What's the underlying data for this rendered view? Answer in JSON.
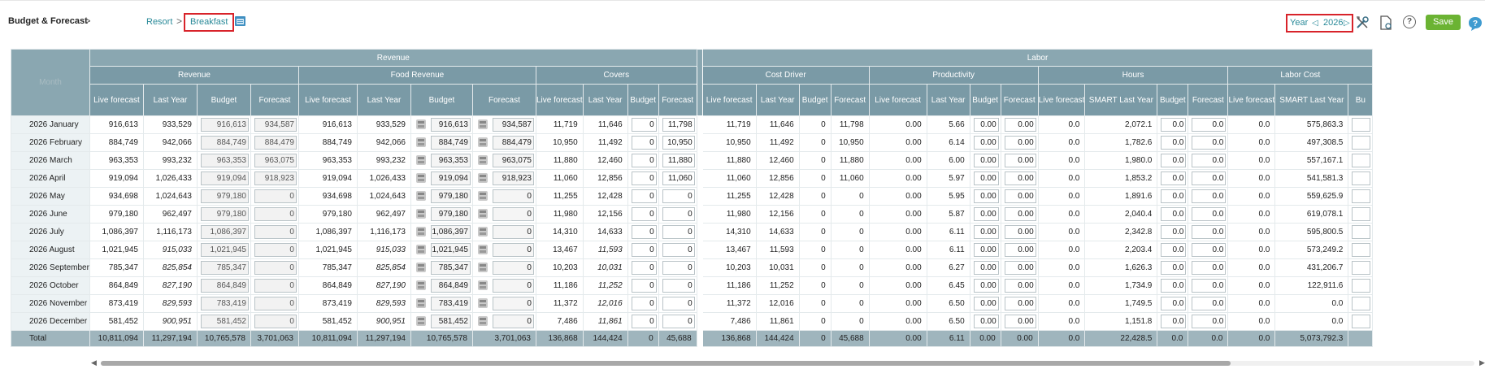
{
  "header": {
    "title": "Budget & Forecast",
    "title_chevron": ">",
    "breadcrumb": {
      "resort": "Resort",
      "separator": ">",
      "current": "Breakfast"
    },
    "year_label": "Year",
    "year_value": "2026",
    "prev_glyph": "◁",
    "next_glyph": "▷",
    "help_glyph": "?",
    "save_label": "Save",
    "icons": [
      "calendar-icon",
      "tools-icon",
      "report-icon",
      "help-icon",
      "chat-icon"
    ],
    "colors": {
      "highlight": "#d8232a",
      "link": "#2a8a99",
      "save": "#6bb333",
      "header": "#7a9aa6"
    }
  },
  "grid": {
    "month_header": "Month",
    "groups": [
      {
        "label": "Revenue"
      },
      {
        "label": "Labor"
      }
    ],
    "subgroups": [
      "Revenue",
      "Food Revenue",
      "Covers",
      "Cost Driver",
      "Productivity",
      "Hours",
      "Labor Cost"
    ],
    "columns": [
      "Live forecast",
      "Last Year",
      "Budget",
      "Forecast",
      "Live forecast",
      "Last Year",
      "Budget",
      "Forecast",
      "Live forecast",
      "Last Year",
      "Budget",
      "Forecast",
      "Live forecast",
      "Last Year",
      "Budget",
      "Forecast",
      "Live forecast",
      "Last Year",
      "Budget",
      "Forecast",
      "Live forecast",
      "SMART Last Year",
      "Budget",
      "Forecast",
      "Live forecast",
      "SMART Last Year",
      "Bu"
    ],
    "rows": [
      {
        "month": "2026 January",
        "c": [
          "916,613",
          "933,529",
          "916,613",
          "934,587",
          "916,613",
          "933,529",
          "916,613",
          "934,587",
          "11,719",
          "11,646",
          "0",
          "11,798",
          "11,719",
          "11,646",
          "0",
          "11,798",
          "0.00",
          "5.66",
          "0.00",
          "0.00",
          "0.0",
          "2,072.1",
          "0.0",
          "0.0",
          "0.0",
          "575,863.3",
          ""
        ]
      },
      {
        "month": "2026 February",
        "c": [
          "884,749",
          "942,066",
          "884,749",
          "884,479",
          "884,749",
          "942,066",
          "884,749",
          "884,479",
          "10,950",
          "11,492",
          "0",
          "10,950",
          "10,950",
          "11,492",
          "0",
          "10,950",
          "0.00",
          "6.14",
          "0.00",
          "0.00",
          "0.0",
          "1,782.6",
          "0.0",
          "0.0",
          "0.0",
          "497,308.5",
          ""
        ]
      },
      {
        "month": "2026 March",
        "c": [
          "963,353",
          "993,232",
          "963,353",
          "963,075",
          "963,353",
          "993,232",
          "963,353",
          "963,075",
          "11,880",
          "12,460",
          "0",
          "11,880",
          "11,880",
          "12,460",
          "0",
          "11,880",
          "0.00",
          "6.00",
          "0.00",
          "0.00",
          "0.0",
          "1,980.0",
          "0.0",
          "0.0",
          "0.0",
          "557,167.1",
          ""
        ]
      },
      {
        "month": "2026 April",
        "c": [
          "919,094",
          "1,026,433",
          "919,094",
          "918,923",
          "919,094",
          "1,026,433",
          "919,094",
          "918,923",
          "11,060",
          "12,856",
          "0",
          "11,060",
          "11,060",
          "12,856",
          "0",
          "11,060",
          "0.00",
          "5.97",
          "0.00",
          "0.00",
          "0.0",
          "1,853.2",
          "0.0",
          "0.0",
          "0.0",
          "541,581.3",
          ""
        ]
      },
      {
        "month": "2026 May",
        "c": [
          "934,698",
          "1,024,643",
          "979,180",
          "0",
          "934,698",
          "1,024,643",
          "979,180",
          "0",
          "11,255",
          "12,428",
          "0",
          "0",
          "11,255",
          "12,428",
          "0",
          "0",
          "0.00",
          "5.95",
          "0.00",
          "0.00",
          "0.0",
          "1,891.6",
          "0.0",
          "0.0",
          "0.0",
          "559,625.9",
          ""
        ]
      },
      {
        "month": "2026 June",
        "c": [
          "979,180",
          "962,497",
          "979,180",
          "0",
          "979,180",
          "962,497",
          "979,180",
          "0",
          "11,980",
          "12,156",
          "0",
          "0",
          "11,980",
          "12,156",
          "0",
          "0",
          "0.00",
          "5.87",
          "0.00",
          "0.00",
          "0.0",
          "2,040.4",
          "0.0",
          "0.0",
          "0.0",
          "619,078.1",
          ""
        ]
      },
      {
        "month": "2026 July",
        "c": [
          "1,086,397",
          "1,116,173",
          "1,086,397",
          "0",
          "1,086,397",
          "1,116,173",
          "1,086,397",
          "0",
          "14,310",
          "14,633",
          "0",
          "0",
          "14,310",
          "14,633",
          "0",
          "0",
          "0.00",
          "6.11",
          "0.00",
          "0.00",
          "0.0",
          "2,342.8",
          "0.0",
          "0.0",
          "0.0",
          "595,800.5",
          ""
        ]
      },
      {
        "month": "2026 August",
        "c": [
          "1,021,945",
          "915,033",
          "1,021,945",
          "0",
          "1,021,945",
          "915,033",
          "1,021,945",
          "0",
          "13,467",
          "11,593",
          "0",
          "0",
          "13,467",
          "11,593",
          "0",
          "0",
          "0.00",
          "6.11",
          "0.00",
          "0.00",
          "0.0",
          "2,203.4",
          "0.0",
          "0.0",
          "0.0",
          "573,249.2",
          ""
        ]
      },
      {
        "month": "2026 September",
        "c": [
          "785,347",
          "825,854",
          "785,347",
          "0",
          "785,347",
          "825,854",
          "785,347",
          "0",
          "10,203",
          "10,031",
          "0",
          "0",
          "10,203",
          "10,031",
          "0",
          "0",
          "0.00",
          "6.27",
          "0.00",
          "0.00",
          "0.0",
          "1,626.3",
          "0.0",
          "0.0",
          "0.0",
          "431,206.7",
          ""
        ]
      },
      {
        "month": "2026 October",
        "c": [
          "864,849",
          "827,190",
          "864,849",
          "0",
          "864,849",
          "827,190",
          "864,849",
          "0",
          "11,186",
          "11,252",
          "0",
          "0",
          "11,186",
          "11,252",
          "0",
          "0",
          "0.00",
          "6.45",
          "0.00",
          "0.00",
          "0.0",
          "1,734.9",
          "0.0",
          "0.0",
          "0.0",
          "122,911.6",
          ""
        ]
      },
      {
        "month": "2026 November",
        "c": [
          "873,419",
          "829,593",
          "783,419",
          "0",
          "873,419",
          "829,593",
          "783,419",
          "0",
          "11,372",
          "12,016",
          "0",
          "0",
          "11,372",
          "12,016",
          "0",
          "0",
          "0.00",
          "6.50",
          "0.00",
          "0.00",
          "0.0",
          "1,749.5",
          "0.0",
          "0.0",
          "0.0",
          "0.0",
          ""
        ]
      },
      {
        "month": "2026 December",
        "c": [
          "581,452",
          "900,951",
          "581,452",
          "0",
          "581,452",
          "900,951",
          "581,452",
          "0",
          "7,486",
          "11,861",
          "0",
          "0",
          "7,486",
          "11,861",
          "0",
          "0",
          "0.00",
          "6.50",
          "0.00",
          "0.00",
          "0.0",
          "1,151.8",
          "0.0",
          "0.0",
          "0.0",
          "0.0",
          ""
        ]
      }
    ],
    "total": {
      "month": "Total",
      "c": [
        "10,811,094",
        "11,297,194",
        "10,765,578",
        "3,701,063",
        "10,811,094",
        "11,297,194",
        "10,765,578",
        "3,701,063",
        "136,868",
        "144,424",
        "0",
        "45,688",
        "136,868",
        "144,424",
        "0",
        "45,688",
        "0.00",
        "6.11",
        "0.00",
        "0.00",
        "0.0",
        "22,428.5",
        "0.0",
        "0.0",
        "0.0",
        "5,073,792.3",
        ""
      ]
    }
  },
  "scrollbar": {
    "left_glyph": "◀",
    "right_glyph": "▶"
  }
}
